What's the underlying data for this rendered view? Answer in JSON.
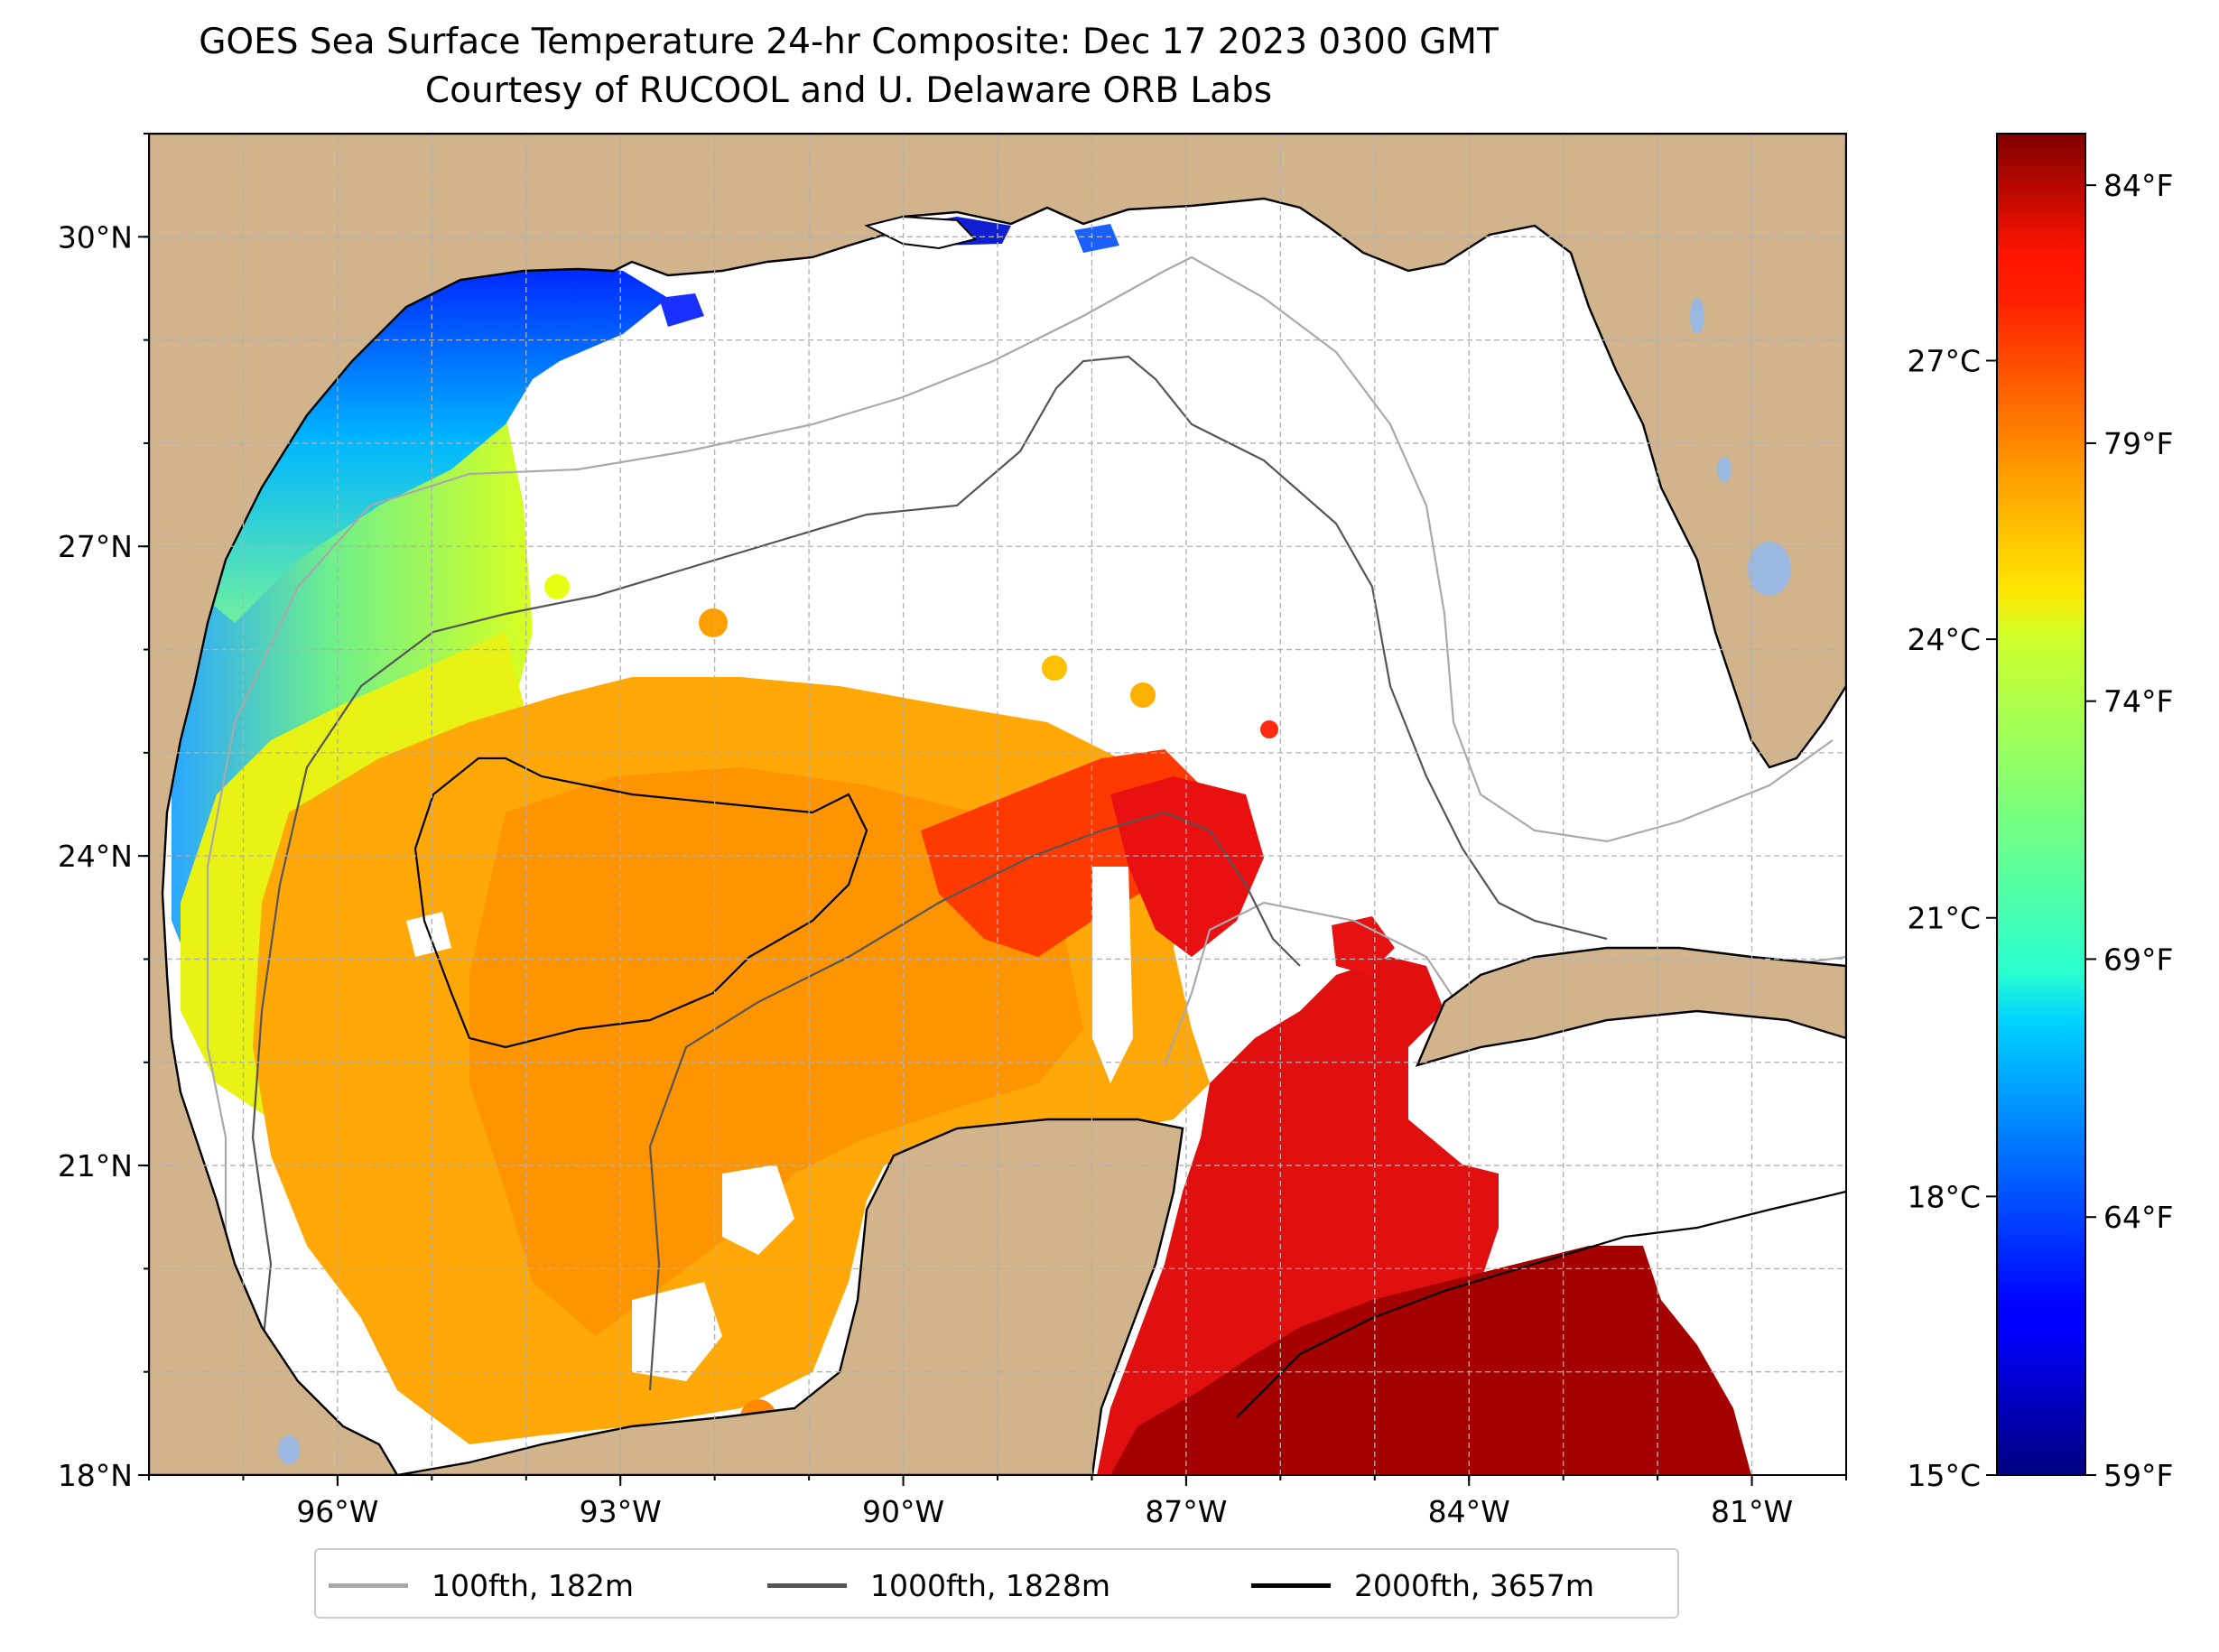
{
  "title": {
    "line1": "GOES Sea Surface Temperature 24-hr Composite: Dec 17 2023 0300 GMT",
    "line2": "Courtesy of RUCOOL and U. Delaware ORB Labs"
  },
  "map": {
    "lon_range": [
      -98,
      -80
    ],
    "lat_range": [
      18,
      31
    ],
    "gridlines": true,
    "land_color": "#d2b48c",
    "lake_color": "#9ab8e0",
    "lat_ticks": [
      {
        "value": 18,
        "label": "18°N"
      },
      {
        "value": 21,
        "label": "21°N"
      },
      {
        "value": 24,
        "label": "24°N"
      },
      {
        "value": 27,
        "label": "27°N"
      },
      {
        "value": 30,
        "label": "30°N"
      }
    ],
    "lon_ticks": [
      {
        "value": -96,
        "label": "96°W"
      },
      {
        "value": -93,
        "label": "93°W"
      },
      {
        "value": -90,
        "label": "90°W"
      },
      {
        "value": -87,
        "label": "87°W"
      },
      {
        "value": -84,
        "label": "84°W"
      },
      {
        "value": -81,
        "label": "81°W"
      }
    ]
  },
  "colorbar": {
    "colormap": "jet",
    "fahrenheit_range": [
      59,
      85
    ],
    "celsius_ticks": [
      {
        "value": 15,
        "label": "15°C"
      },
      {
        "value": 18,
        "label": "18°C"
      },
      {
        "value": 21,
        "label": "21°C"
      },
      {
        "value": 24,
        "label": "24°C"
      },
      {
        "value": 27,
        "label": "27°C"
      }
    ],
    "fahrenheit_ticks": [
      {
        "value": 59,
        "label": "59°F"
      },
      {
        "value": 64,
        "label": "64°F"
      },
      {
        "value": 69,
        "label": "69°F"
      },
      {
        "value": 74,
        "label": "74°F"
      },
      {
        "value": 79,
        "label": "79°F"
      },
      {
        "value": 84,
        "label": "84°F"
      }
    ]
  },
  "legend": {
    "placement": "bottom-center",
    "items": [
      {
        "label": "100fth, 182m",
        "color": "#a9a9a9"
      },
      {
        "label": "1000fth, 1828m",
        "color": "#555555"
      },
      {
        "label": "2000fth, 3657m",
        "color": "#000000"
      }
    ]
  }
}
